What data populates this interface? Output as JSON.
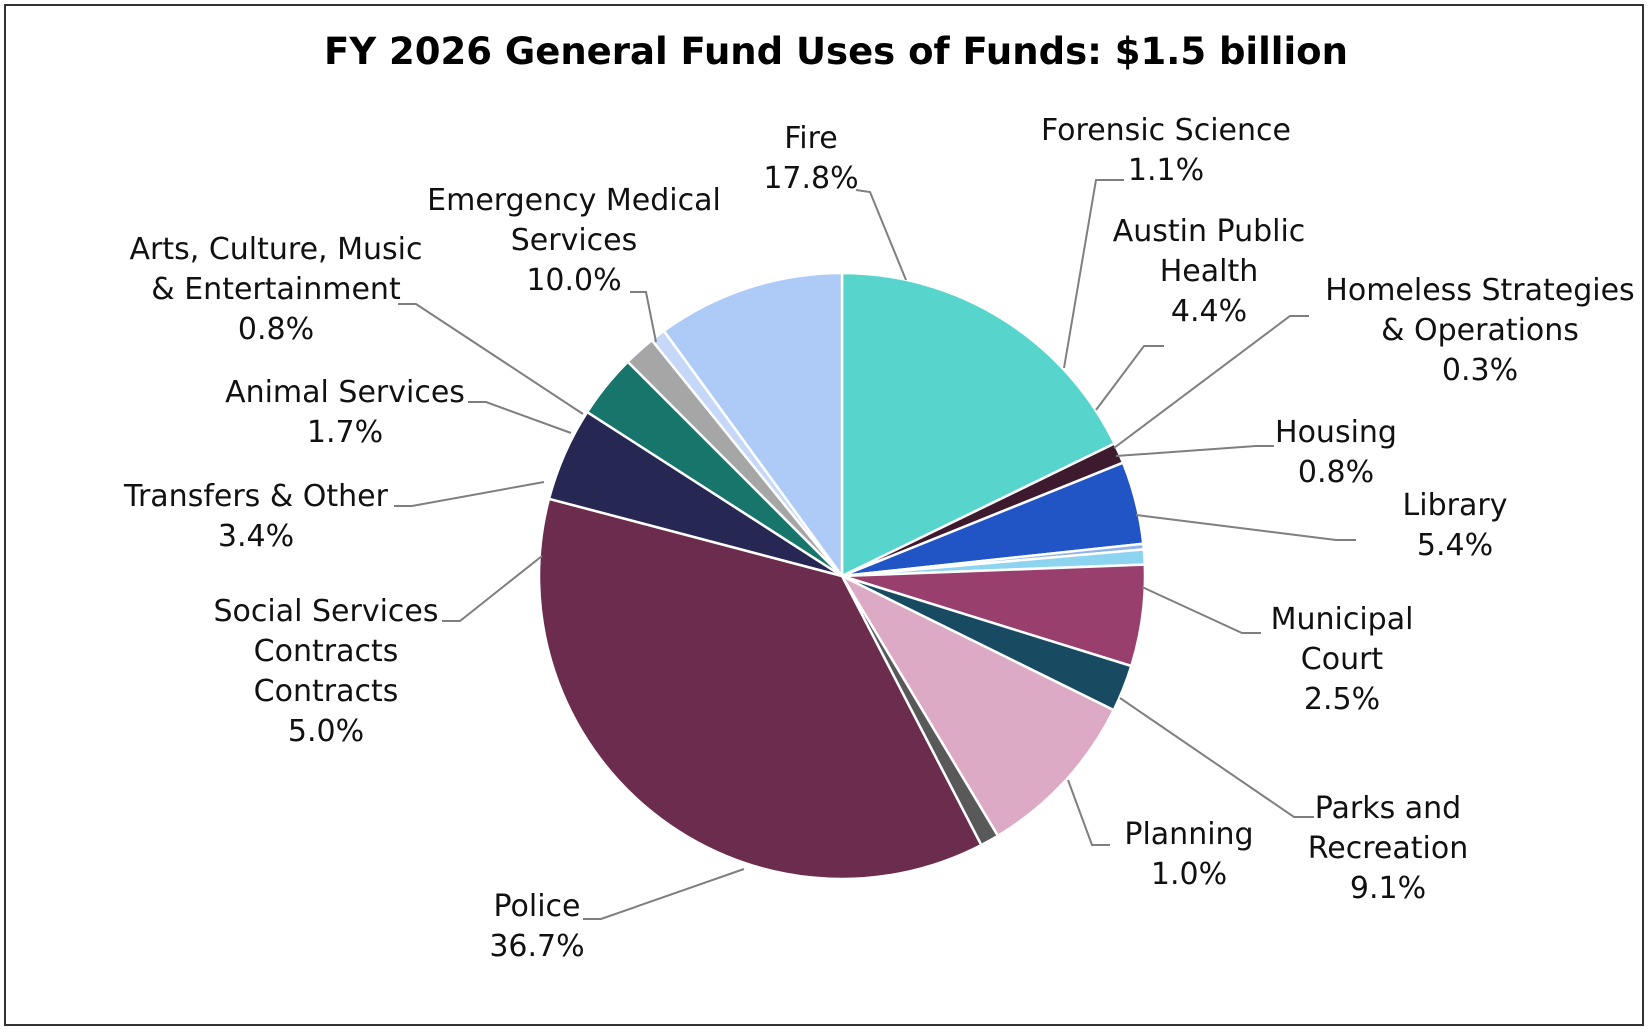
{
  "chart_data": {
    "type": "pie",
    "title": "FY 2026 General Fund Uses of Funds: $1.5 billion",
    "start_angle_deg": 0,
    "direction": "clockwise",
    "slices": [
      {
        "name": "Fire",
        "lines": [
          "Fire"
        ],
        "pct_label": "17.8%",
        "value": 17.8,
        "color": "#57D5CC"
      },
      {
        "name": "Forensic Science",
        "lines": [
          "Forensic Science"
        ],
        "pct_label": "1.1%",
        "value": 1.1,
        "color": "#3E1A2E"
      },
      {
        "name": "Austin Public Health",
        "lines": [
          "Austin Public",
          "Health"
        ],
        "pct_label": "4.4%",
        "value": 4.4,
        "color": "#2155C6"
      },
      {
        "name": "Homeless Strategies & Operations",
        "lines": [
          "Homeless Strategies",
          "& Operations"
        ],
        "pct_label": "0.3%",
        "value": 0.3,
        "color": "#8FB3E8"
      },
      {
        "name": "Housing",
        "lines": [
          "Housing"
        ],
        "pct_label": "0.8%",
        "value": 0.8,
        "color": "#8DD4F0"
      },
      {
        "name": "Library",
        "lines": [
          "Library"
        ],
        "pct_label": "5.4%",
        "value": 5.4,
        "color": "#983F6E"
      },
      {
        "name": "Municipal Court",
        "lines": [
          "Municipal",
          "Court"
        ],
        "pct_label": "2.5%",
        "value": 2.5,
        "color": "#184B62"
      },
      {
        "name": "Parks and Recreation",
        "lines": [
          "Parks and",
          "Recreation"
        ],
        "pct_label": "9.1%",
        "value": 9.1,
        "color": "#DDAAC6"
      },
      {
        "name": "Planning",
        "lines": [
          "Planning"
        ],
        "pct_label": "1.0%",
        "value": 1.0,
        "color": "#595959"
      },
      {
        "name": "Police",
        "lines": [
          "Police"
        ],
        "pct_label": "36.7%",
        "value": 36.7,
        "color": "#6B2C4E"
      },
      {
        "name": "Social Services Contracts",
        "lines": [
          "Social Services",
          "Contracts",
          "Contracts"
        ],
        "pct_label": "5.0%",
        "value": 5.0,
        "color": "#262853"
      },
      {
        "name": "Transfers & Other",
        "lines": [
          "Transfers & Other"
        ],
        "pct_label": "3.4%",
        "value": 3.4,
        "color": "#17756B"
      },
      {
        "name": "Animal Services",
        "lines": [
          "Animal Services"
        ],
        "pct_label": "1.7%",
        "value": 1.7,
        "color": "#A6A6A6"
      },
      {
        "name": "Arts, Culture, Music & Entertainment",
        "lines": [
          "Arts, Culture, Music",
          "& Entertainment"
        ],
        "pct_label": "0.8%",
        "value": 0.8,
        "color": "#C5D8F7"
      },
      {
        "name": "Emergency Medical Services",
        "lines": [
          "Emergency Medical",
          "Services"
        ],
        "pct_label": "10.0%",
        "value": 10.0,
        "color": "#AECBF8"
      }
    ]
  }
}
